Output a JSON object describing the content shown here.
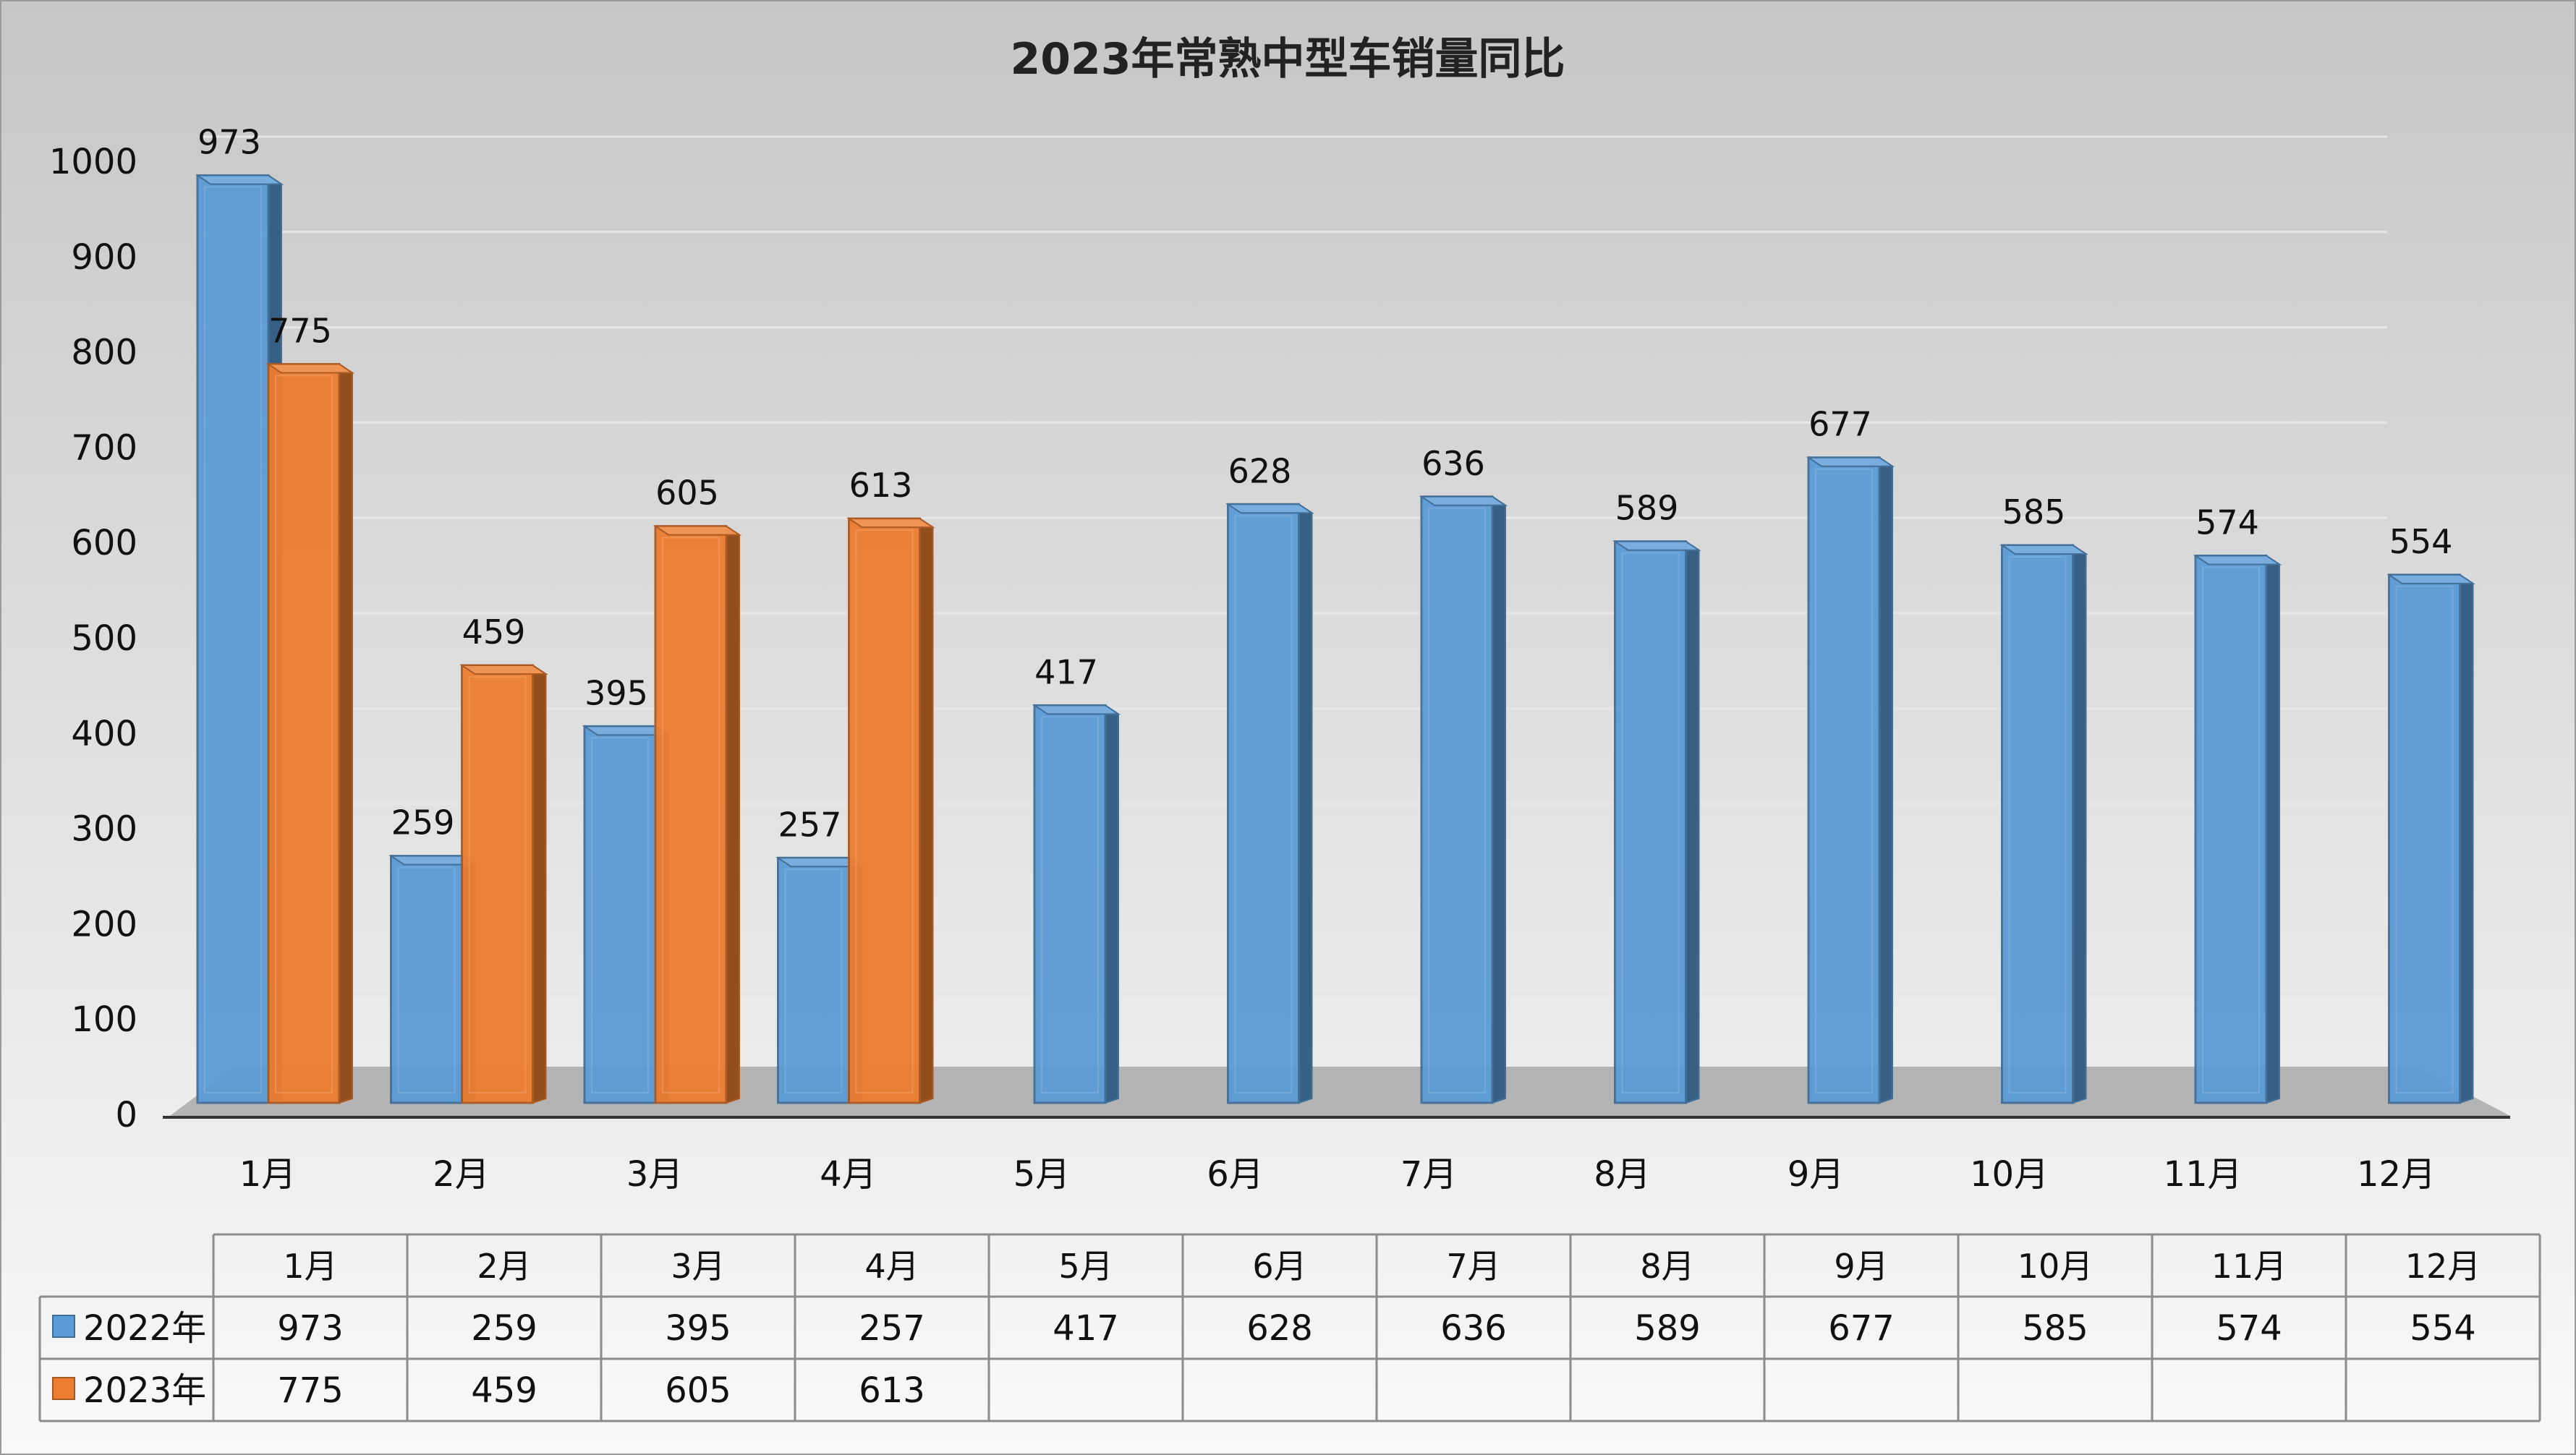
{
  "chart_data": {
    "type": "bar",
    "title": "2023年常熟中型车销量同比",
    "categories": [
      "1月",
      "2月",
      "3月",
      "4月",
      "5月",
      "6月",
      "7月",
      "8月",
      "9月",
      "10月",
      "11月",
      "12月"
    ],
    "series": [
      {
        "name": "2022年",
        "color": "#5b9bd5",
        "values": [
          973,
          259,
          395,
          257,
          417,
          628,
          636,
          589,
          677,
          585,
          574,
          554
        ]
      },
      {
        "name": "2023年",
        "color": "#ed7d31",
        "values": [
          775,
          459,
          605,
          613,
          null,
          null,
          null,
          null,
          null,
          null,
          null,
          null
        ]
      }
    ],
    "ylim": [
      0,
      1000
    ],
    "yticks": [
      0,
      100,
      200,
      300,
      400,
      500,
      600,
      700,
      800,
      900,
      1000
    ],
    "grid": true,
    "legend": "data-table",
    "data_table": true,
    "colors": {
      "background_top": "#c9c9c9",
      "background_bottom": "#f7f7f7",
      "floor": "#a6a6a6"
    }
  }
}
